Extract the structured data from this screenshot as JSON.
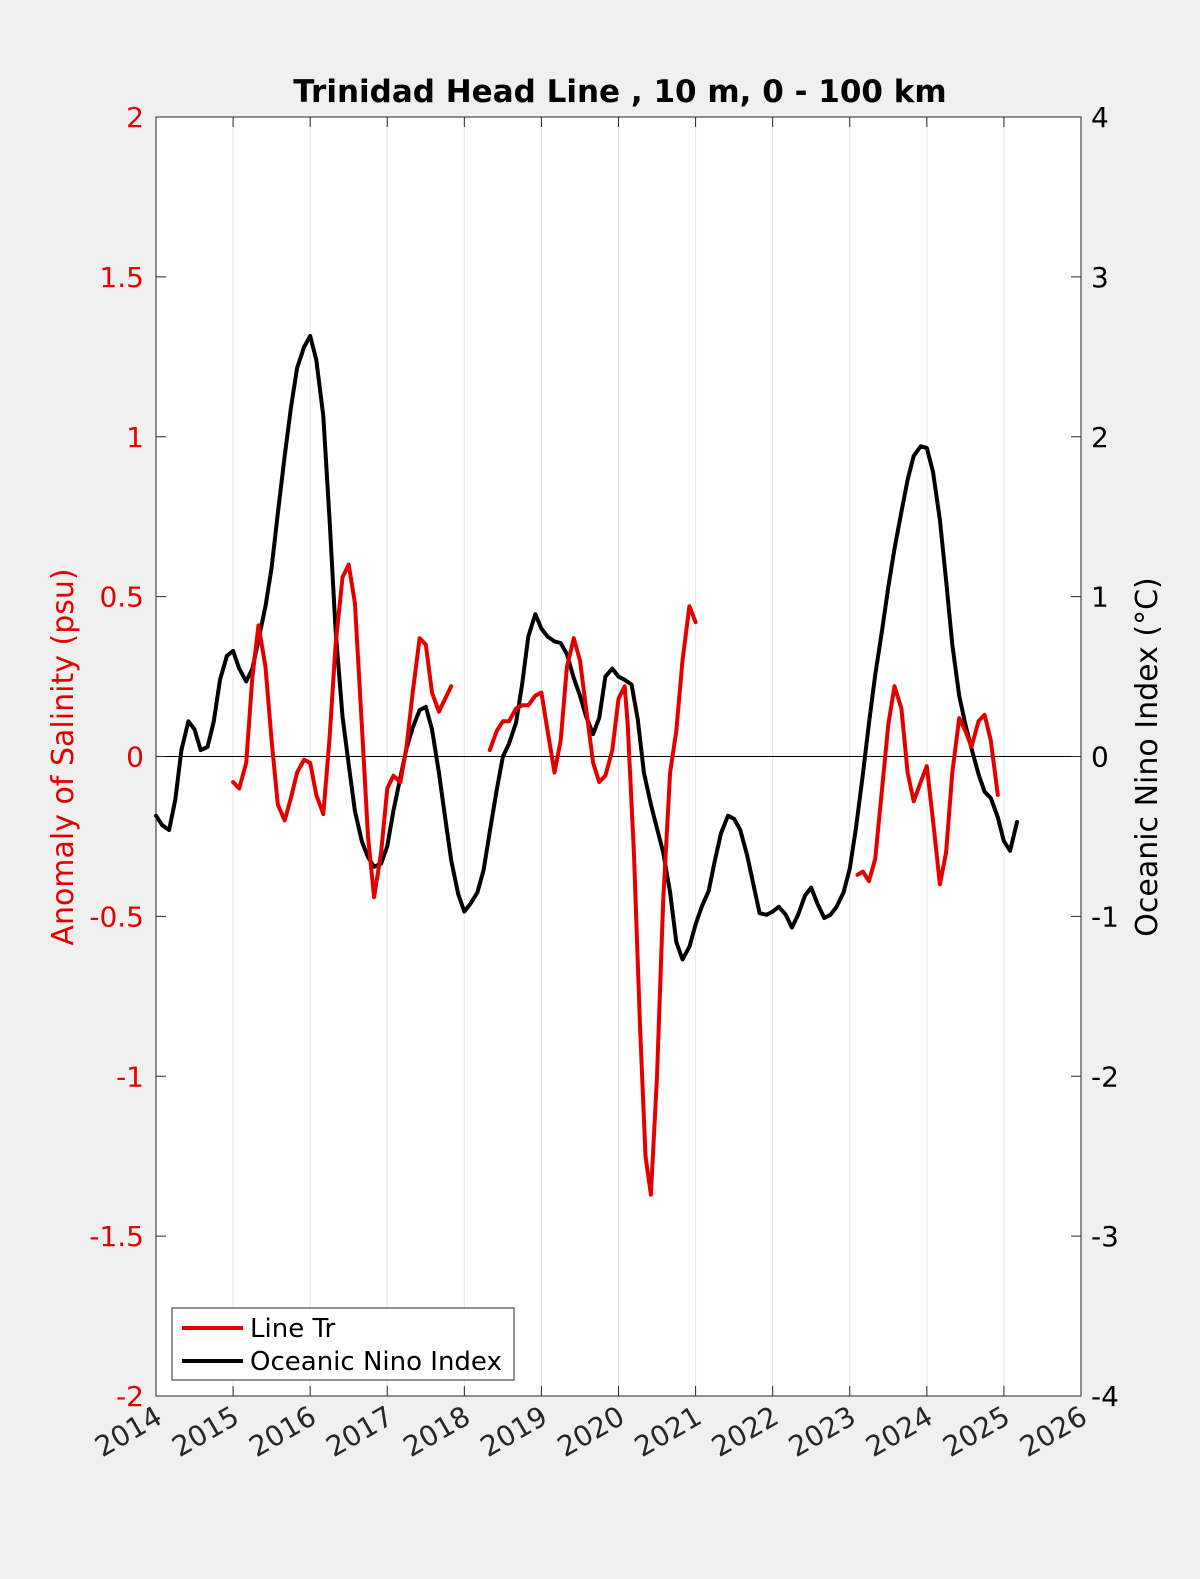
{
  "chart_data": {
    "type": "line",
    "title": "Trinidad Head Line , 10 m, 0 - 100 km",
    "ylabel_left": "Anomaly of Salinity (psu)",
    "ylabel_right": "Oceanic Nino Index (°C)",
    "xlim": [
      2014,
      2026
    ],
    "ylim_left": [
      -2,
      2
    ],
    "ylim_right": [
      -4,
      4
    ],
    "x_ticks": [
      "2014",
      "2015",
      "2016",
      "2017",
      "2018",
      "2019",
      "2020",
      "2021",
      "2022",
      "2023",
      "2024",
      "2025",
      "2026"
    ],
    "y_ticks_left": [
      "-2",
      "-1.5",
      "-1",
      "-0.5",
      "0",
      "0.5",
      "1",
      "1.5",
      "2"
    ],
    "y_ticks_right": [
      "-4",
      "-3",
      "-2",
      "-1",
      "0",
      "1",
      "2",
      "3",
      "4"
    ],
    "grid": "vertical",
    "legend_position": "bottom-left",
    "colors": {
      "salinity": "#e50000",
      "oni": "#000000",
      "left_axis": "#e50000",
      "right_axis": "#000000"
    },
    "series": [
      {
        "name": "Line Tr",
        "axis": "left",
        "segments": [
          [
            [
              2015.0,
              -0.08
            ],
            [
              2015.08,
              -0.1
            ],
            [
              2015.17,
              -0.02
            ],
            [
              2015.25,
              0.25
            ],
            [
              2015.33,
              0.41
            ],
            [
              2015.42,
              0.28
            ],
            [
              2015.5,
              0.05
            ],
            [
              2015.58,
              -0.15
            ],
            [
              2015.67,
              -0.2
            ],
            [
              2015.75,
              -0.13
            ],
            [
              2015.83,
              -0.05
            ],
            [
              2015.92,
              -0.01
            ],
            [
              2016.0,
              -0.02
            ],
            [
              2016.08,
              -0.12
            ],
            [
              2016.17,
              -0.18
            ],
            [
              2016.25,
              0.05
            ],
            [
              2016.33,
              0.35
            ],
            [
              2016.42,
              0.56
            ],
            [
              2016.5,
              0.6
            ],
            [
              2016.58,
              0.48
            ],
            [
              2016.67,
              0.1
            ],
            [
              2016.75,
              -0.25
            ],
            [
              2016.83,
              -0.44
            ],
            [
              2016.92,
              -0.3
            ],
            [
              2017.0,
              -0.1
            ],
            [
              2017.08,
              -0.06
            ],
            [
              2017.17,
              -0.08
            ],
            [
              2017.25,
              0.03
            ],
            [
              2017.33,
              0.2
            ],
            [
              2017.42,
              0.37
            ],
            [
              2017.5,
              0.35
            ],
            [
              2017.58,
              0.2
            ],
            [
              2017.67,
              0.14
            ],
            [
              2017.75,
              0.18
            ],
            [
              2017.83,
              0.22
            ]
          ],
          [
            [
              2018.33,
              0.02
            ],
            [
              2018.42,
              0.08
            ],
            [
              2018.5,
              0.11
            ],
            [
              2018.58,
              0.11
            ],
            [
              2018.67,
              0.15
            ],
            [
              2018.75,
              0.16
            ],
            [
              2018.83,
              0.16
            ],
            [
              2018.92,
              0.19
            ],
            [
              2019.0,
              0.2
            ],
            [
              2019.08,
              0.08
            ],
            [
              2019.17,
              -0.05
            ],
            [
              2019.25,
              0.05
            ],
            [
              2019.33,
              0.28
            ],
            [
              2019.42,
              0.37
            ],
            [
              2019.5,
              0.3
            ],
            [
              2019.58,
              0.15
            ],
            [
              2019.67,
              -0.02
            ],
            [
              2019.75,
              -0.08
            ],
            [
              2019.83,
              -0.06
            ],
            [
              2019.92,
              0.02
            ],
            [
              2020.0,
              0.18
            ],
            [
              2020.08,
              0.22
            ],
            [
              2020.12,
              0.1
            ],
            [
              2020.2,
              -0.3
            ],
            [
              2020.28,
              -0.85
            ],
            [
              2020.35,
              -1.25
            ],
            [
              2020.42,
              -1.37
            ],
            [
              2020.5,
              -1.0
            ],
            [
              2020.58,
              -0.45
            ],
            [
              2020.67,
              -0.05
            ],
            [
              2020.75,
              0.08
            ],
            [
              2020.83,
              0.3
            ],
            [
              2020.92,
              0.47
            ],
            [
              2021.0,
              0.42
            ]
          ],
          [
            [
              2023.1,
              -0.37
            ],
            [
              2023.17,
              -0.36
            ],
            [
              2023.25,
              -0.39
            ],
            [
              2023.33,
              -0.32
            ],
            [
              2023.42,
              -0.1
            ],
            [
              2023.5,
              0.1
            ],
            [
              2023.58,
              0.22
            ],
            [
              2023.67,
              0.15
            ],
            [
              2023.75,
              -0.05
            ],
            [
              2023.83,
              -0.14
            ],
            [
              2023.92,
              -0.08
            ],
            [
              2024.0,
              -0.03
            ],
            [
              2024.08,
              -0.2
            ],
            [
              2024.17,
              -0.4
            ],
            [
              2024.25,
              -0.3
            ],
            [
              2024.33,
              -0.05
            ],
            [
              2024.42,
              0.12
            ],
            [
              2024.5,
              0.08
            ],
            [
              2024.58,
              0.03
            ],
            [
              2024.67,
              0.11
            ],
            [
              2024.75,
              0.13
            ],
            [
              2024.83,
              0.05
            ],
            [
              2024.92,
              -0.12
            ]
          ]
        ]
      },
      {
        "name": "Oceanic Nino Index",
        "axis": "right",
        "segments": [
          [
            [
              2014.0,
              -0.37
            ],
            [
              2014.08,
              -0.43
            ],
            [
              2014.17,
              -0.46
            ],
            [
              2014.25,
              -0.27
            ],
            [
              2014.33,
              0.04
            ],
            [
              2014.42,
              0.22
            ],
            [
              2014.5,
              0.17
            ],
            [
              2014.58,
              0.04
            ],
            [
              2014.67,
              0.06
            ],
            [
              2014.75,
              0.22
            ],
            [
              2014.83,
              0.48
            ],
            [
              2014.92,
              0.63
            ],
            [
              2015.0,
              0.66
            ],
            [
              2015.08,
              0.55
            ],
            [
              2015.17,
              0.47
            ],
            [
              2015.25,
              0.55
            ],
            [
              2015.33,
              0.73
            ],
            [
              2015.42,
              0.94
            ],
            [
              2015.5,
              1.18
            ],
            [
              2015.58,
              1.52
            ],
            [
              2015.67,
              1.88
            ],
            [
              2015.75,
              2.18
            ],
            [
              2015.83,
              2.43
            ],
            [
              2015.92,
              2.56
            ],
            [
              2016.0,
              2.63
            ],
            [
              2016.08,
              2.48
            ],
            [
              2016.17,
              2.13
            ],
            [
              2016.25,
              1.5
            ],
            [
              2016.33,
              0.79
            ],
            [
              2016.42,
              0.25
            ],
            [
              2016.5,
              -0.05
            ],
            [
              2016.58,
              -0.34
            ],
            [
              2016.67,
              -0.53
            ],
            [
              2016.75,
              -0.63
            ],
            [
              2016.83,
              -0.69
            ],
            [
              2016.92,
              -0.67
            ],
            [
              2017.0,
              -0.56
            ],
            [
              2017.08,
              -0.34
            ],
            [
              2017.17,
              -0.13
            ],
            [
              2017.25,
              0.05
            ],
            [
              2017.33,
              0.18
            ],
            [
              2017.42,
              0.29
            ],
            [
              2017.5,
              0.31
            ],
            [
              2017.58,
              0.17
            ],
            [
              2017.67,
              -0.1
            ],
            [
              2017.75,
              -0.38
            ],
            [
              2017.83,
              -0.65
            ],
            [
              2017.92,
              -0.86
            ],
            [
              2018.0,
              -0.97
            ],
            [
              2018.08,
              -0.92
            ],
            [
              2018.17,
              -0.85
            ],
            [
              2018.25,
              -0.71
            ],
            [
              2018.33,
              -0.47
            ],
            [
              2018.42,
              -0.21
            ],
            [
              2018.5,
              0.0
            ],
            [
              2018.58,
              0.08
            ],
            [
              2018.67,
              0.21
            ],
            [
              2018.75,
              0.45
            ],
            [
              2018.83,
              0.75
            ],
            [
              2018.92,
              0.89
            ],
            [
              2019.0,
              0.8
            ],
            [
              2019.08,
              0.75
            ],
            [
              2019.17,
              0.72
            ],
            [
              2019.25,
              0.71
            ],
            [
              2019.33,
              0.64
            ],
            [
              2019.42,
              0.49
            ],
            [
              2019.5,
              0.38
            ],
            [
              2019.58,
              0.25
            ],
            [
              2019.67,
              0.14
            ],
            [
              2019.75,
              0.24
            ],
            [
              2019.83,
              0.5
            ],
            [
              2019.92,
              0.55
            ],
            [
              2020.0,
              0.5
            ],
            [
              2020.08,
              0.48
            ],
            [
              2020.17,
              0.45
            ],
            [
              2020.25,
              0.23
            ],
            [
              2020.33,
              -0.1
            ],
            [
              2020.42,
              -0.3
            ],
            [
              2020.5,
              -0.45
            ],
            [
              2020.58,
              -0.6
            ],
            [
              2020.67,
              -0.85
            ],
            [
              2020.75,
              -1.16
            ],
            [
              2020.83,
              -1.27
            ],
            [
              2020.92,
              -1.19
            ],
            [
              2021.0,
              -1.05
            ],
            [
              2021.08,
              -0.94
            ],
            [
              2021.17,
              -0.84
            ],
            [
              2021.25,
              -0.65
            ],
            [
              2021.33,
              -0.48
            ],
            [
              2021.42,
              -0.37
            ],
            [
              2021.5,
              -0.39
            ],
            [
              2021.58,
              -0.46
            ],
            [
              2021.67,
              -0.62
            ],
            [
              2021.75,
              -0.8
            ],
            [
              2021.83,
              -0.98
            ],
            [
              2021.92,
              -0.99
            ],
            [
              2022.0,
              -0.97
            ],
            [
              2022.08,
              -0.94
            ],
            [
              2022.17,
              -0.99
            ],
            [
              2022.25,
              -1.07
            ],
            [
              2022.33,
              -0.99
            ],
            [
              2022.42,
              -0.87
            ],
            [
              2022.5,
              -0.82
            ],
            [
              2022.58,
              -0.92
            ],
            [
              2022.67,
              -1.01
            ],
            [
              2022.75,
              -0.99
            ],
            [
              2022.83,
              -0.94
            ],
            [
              2022.92,
              -0.85
            ],
            [
              2023.0,
              -0.7
            ],
            [
              2023.08,
              -0.45
            ],
            [
              2023.17,
              -0.11
            ],
            [
              2023.25,
              0.21
            ],
            [
              2023.33,
              0.51
            ],
            [
              2023.42,
              0.79
            ],
            [
              2023.5,
              1.06
            ],
            [
              2023.58,
              1.3
            ],
            [
              2023.67,
              1.53
            ],
            [
              2023.75,
              1.73
            ],
            [
              2023.83,
              1.88
            ],
            [
              2023.92,
              1.94
            ],
            [
              2024.0,
              1.93
            ],
            [
              2024.08,
              1.78
            ],
            [
              2024.17,
              1.48
            ],
            [
              2024.25,
              1.1
            ],
            [
              2024.33,
              0.7
            ],
            [
              2024.42,
              0.38
            ],
            [
              2024.5,
              0.2
            ],
            [
              2024.58,
              0.05
            ],
            [
              2024.67,
              -0.11
            ],
            [
              2024.75,
              -0.22
            ],
            [
              2024.83,
              -0.26
            ],
            [
              2024.92,
              -0.38
            ],
            [
              2025.0,
              -0.53
            ],
            [
              2025.08,
              -0.59
            ],
            [
              2025.17,
              -0.41
            ]
          ]
        ]
      }
    ]
  }
}
